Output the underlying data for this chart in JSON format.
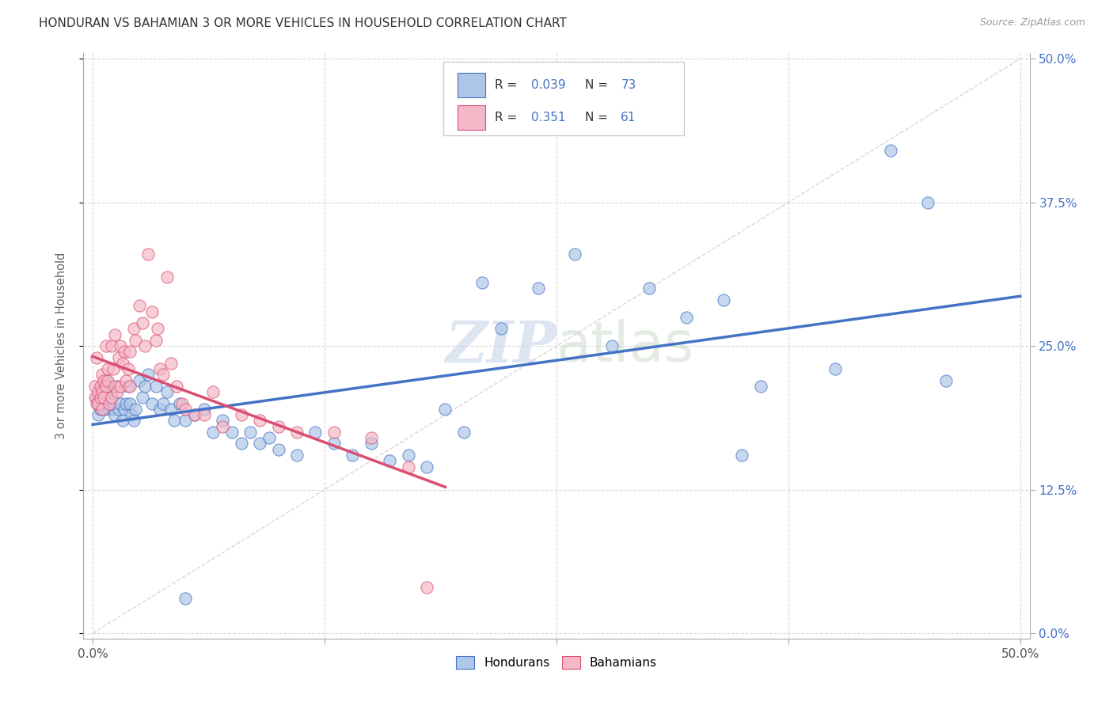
{
  "title": "HONDURAN VS BAHAMIAN 3 OR MORE VEHICLES IN HOUSEHOLD CORRELATION CHART",
  "source": "Source: ZipAtlas.com",
  "x_tick_positions": [
    0.0,
    0.125,
    0.25,
    0.375,
    0.5
  ],
  "x_tick_labels": [
    "0.0%",
    "",
    "",
    "",
    "50.0%"
  ],
  "y_tick_positions": [
    0.0,
    0.125,
    0.25,
    0.375,
    0.5
  ],
  "y_tick_labels": [
    "0.0%",
    "12.5%",
    "25.0%",
    "37.5%",
    "50.0%"
  ],
  "ylabel": "3 or more Vehicles in Household",
  "legend_labels": [
    "Hondurans",
    "Bahamians"
  ],
  "r_hon": "0.039",
  "n_hon": "73",
  "r_bah": "0.351",
  "n_bah": "61",
  "watermark_zip": "ZIP",
  "watermark_atlas": "atlas",
  "blue_fill": "#aec6e8",
  "pink_fill": "#f5b8c8",
  "line_blue": "#4472c4",
  "line_pink": "#d94f70",
  "line_diag_color": "#cccccc",
  "r_n_color": "#4472c4",
  "grid_color": "#d8d8d8",
  "axis_color": "#aaaaaa",
  "text_color": "#333333",
  "hondurans_x": [
    0.002,
    0.003,
    0.003,
    0.004,
    0.005,
    0.006,
    0.006,
    0.007,
    0.008,
    0.008,
    0.009,
    0.01,
    0.011,
    0.012,
    0.013,
    0.014,
    0.015,
    0.016,
    0.017,
    0.018,
    0.019,
    0.02,
    0.021,
    0.022,
    0.023,
    0.025,
    0.027,
    0.028,
    0.03,
    0.032,
    0.034,
    0.036,
    0.038,
    0.04,
    0.042,
    0.044,
    0.047,
    0.05,
    0.055,
    0.06,
    0.065,
    0.07,
    0.075,
    0.08,
    0.085,
    0.09,
    0.095,
    0.1,
    0.11,
    0.12,
    0.13,
    0.14,
    0.15,
    0.16,
    0.17,
    0.18,
    0.19,
    0.2,
    0.21,
    0.22,
    0.24,
    0.26,
    0.28,
    0.3,
    0.32,
    0.34,
    0.35,
    0.36,
    0.4,
    0.43,
    0.45,
    0.46,
    0.05
  ],
  "hondurans_y": [
    0.205,
    0.2,
    0.19,
    0.195,
    0.215,
    0.2,
    0.195,
    0.22,
    0.2,
    0.21,
    0.195,
    0.205,
    0.195,
    0.19,
    0.215,
    0.195,
    0.2,
    0.185,
    0.195,
    0.2,
    0.215,
    0.2,
    0.19,
    0.185,
    0.195,
    0.22,
    0.205,
    0.215,
    0.225,
    0.2,
    0.215,
    0.195,
    0.2,
    0.21,
    0.195,
    0.185,
    0.2,
    0.185,
    0.19,
    0.195,
    0.175,
    0.185,
    0.175,
    0.165,
    0.175,
    0.165,
    0.17,
    0.16,
    0.155,
    0.175,
    0.165,
    0.155,
    0.165,
    0.15,
    0.155,
    0.145,
    0.195,
    0.175,
    0.305,
    0.265,
    0.3,
    0.33,
    0.25,
    0.3,
    0.275,
    0.29,
    0.155,
    0.215,
    0.23,
    0.42,
    0.375,
    0.22,
    0.03
  ],
  "bahamians_x": [
    0.001,
    0.001,
    0.002,
    0.002,
    0.003,
    0.003,
    0.004,
    0.004,
    0.005,
    0.005,
    0.005,
    0.006,
    0.006,
    0.007,
    0.007,
    0.008,
    0.008,
    0.009,
    0.01,
    0.01,
    0.011,
    0.012,
    0.012,
    0.013,
    0.014,
    0.015,
    0.015,
    0.016,
    0.017,
    0.018,
    0.019,
    0.02,
    0.02,
    0.022,
    0.023,
    0.025,
    0.027,
    0.028,
    0.03,
    0.032,
    0.034,
    0.035,
    0.036,
    0.038,
    0.04,
    0.042,
    0.045,
    0.048,
    0.05,
    0.055,
    0.06,
    0.065,
    0.07,
    0.08,
    0.09,
    0.1,
    0.11,
    0.13,
    0.15,
    0.17,
    0.18
  ],
  "bahamians_y": [
    0.215,
    0.205,
    0.2,
    0.24,
    0.21,
    0.2,
    0.215,
    0.205,
    0.225,
    0.21,
    0.195,
    0.22,
    0.205,
    0.25,
    0.215,
    0.22,
    0.23,
    0.2,
    0.25,
    0.205,
    0.23,
    0.215,
    0.26,
    0.21,
    0.24,
    0.25,
    0.215,
    0.235,
    0.245,
    0.22,
    0.23,
    0.245,
    0.215,
    0.265,
    0.255,
    0.285,
    0.27,
    0.25,
    0.33,
    0.28,
    0.255,
    0.265,
    0.23,
    0.225,
    0.31,
    0.235,
    0.215,
    0.2,
    0.195,
    0.19,
    0.19,
    0.21,
    0.18,
    0.19,
    0.185,
    0.18,
    0.175,
    0.175,
    0.17,
    0.145,
    0.04
  ]
}
